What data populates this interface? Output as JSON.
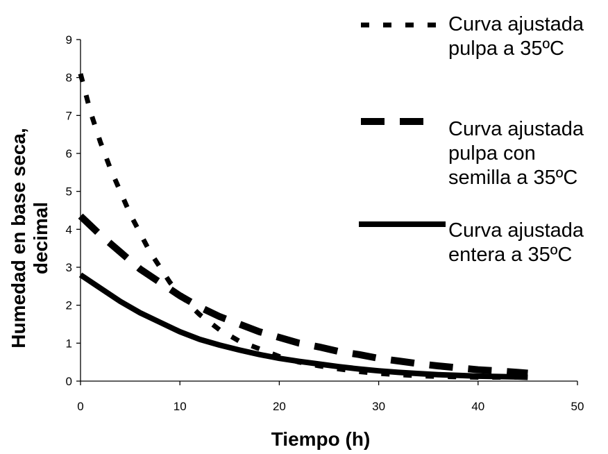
{
  "chart_data": {
    "type": "line",
    "xlabel": "Tiempo (h)",
    "ylabel_lines": [
      "Humedad en base seca,",
      "decimal"
    ],
    "xlim": [
      0,
      50
    ],
    "ylim": [
      0,
      9
    ],
    "xticks": [
      0,
      10,
      20,
      30,
      40,
      50
    ],
    "yticks": [
      0,
      1,
      2,
      3,
      4,
      5,
      6,
      7,
      8,
      9
    ],
    "grid": false,
    "legend_position": "right",
    "series": [
      {
        "name_lines": [
          "Curva ajustada",
          "pulpa a 35ºC"
        ],
        "style": "dotted",
        "color": "#000000",
        "x": [
          0,
          1,
          2,
          3,
          4,
          5,
          6,
          7,
          8,
          9,
          10,
          11,
          12,
          13,
          14,
          15,
          16,
          17,
          18,
          19,
          20,
          22,
          24,
          26,
          28,
          30,
          32,
          34,
          36,
          38,
          40,
          42,
          44
        ],
        "y": [
          8.1,
          7.1,
          6.3,
          5.6,
          5.0,
          4.4,
          3.9,
          3.4,
          3.0,
          2.6,
          2.3,
          2.0,
          1.75,
          1.55,
          1.35,
          1.2,
          1.05,
          0.95,
          0.85,
          0.75,
          0.65,
          0.5,
          0.4,
          0.32,
          0.25,
          0.2,
          0.17,
          0.14,
          0.12,
          0.11,
          0.1,
          0.1,
          0.1
        ]
      },
      {
        "name_lines": [
          "Curva ajustada",
          "pulpa con",
          "semilla a 35ºC"
        ],
        "style": "dashed",
        "color": "#000000",
        "x": [
          0,
          2,
          4,
          6,
          8,
          10,
          12,
          14,
          16,
          18,
          20,
          22,
          24,
          26,
          28,
          30,
          32,
          34,
          36,
          38,
          40,
          42,
          44,
          45
        ],
        "y": [
          4.35,
          3.85,
          3.4,
          2.95,
          2.6,
          2.25,
          1.95,
          1.7,
          1.5,
          1.3,
          1.15,
          1.0,
          0.9,
          0.78,
          0.7,
          0.6,
          0.53,
          0.46,
          0.4,
          0.35,
          0.3,
          0.27,
          0.23,
          0.21
        ]
      },
      {
        "name_lines": [
          "Curva ajustada",
          "entera a 35ºC"
        ],
        "style": "solid",
        "color": "#000000",
        "x": [
          0,
          2,
          4,
          6,
          8,
          10,
          12,
          14,
          16,
          18,
          20,
          22,
          24,
          26,
          28,
          30,
          32,
          34,
          36,
          38,
          40,
          42,
          44,
          45
        ],
        "y": [
          2.8,
          2.45,
          2.1,
          1.8,
          1.55,
          1.3,
          1.1,
          0.95,
          0.82,
          0.7,
          0.6,
          0.52,
          0.45,
          0.38,
          0.32,
          0.27,
          0.23,
          0.2,
          0.17,
          0.15,
          0.13,
          0.12,
          0.11,
          0.1
        ]
      }
    ]
  }
}
